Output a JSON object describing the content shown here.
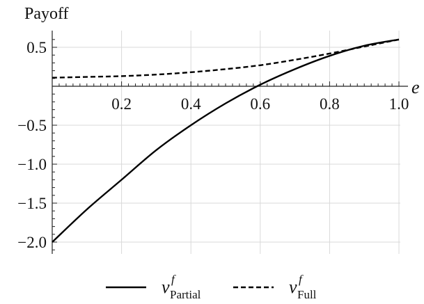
{
  "chart_data": {
    "type": "line",
    "ylabel": "Payoff",
    "xlabel": "e",
    "xlim": [
      0,
      1.0
    ],
    "ylim": [
      -2.1,
      0.7
    ],
    "grid": true,
    "legend_position": "bottom",
    "x_ticks": [
      0.2,
      0.4,
      0.6,
      0.8,
      1.0
    ],
    "x_tick_labels": [
      "0.2",
      "0.4",
      "0.6",
      "0.8",
      "1.0"
    ],
    "y_ticks": [
      0.5,
      -0.5,
      -1.0,
      -1.5,
      -2.0
    ],
    "y_tick_labels": [
      "0.5",
      "−0.5",
      "−1.0",
      "−1.5",
      "−2.0"
    ],
    "series": [
      {
        "name_main": "v",
        "name_sup": "f",
        "name_sub": "Partial",
        "style": "solid",
        "x": [
          0,
          0.1,
          0.2,
          0.3,
          0.4,
          0.5,
          0.6,
          0.7,
          0.8,
          0.9,
          1.0
        ],
        "y": [
          -2.0,
          -1.58,
          -1.2,
          -0.82,
          -0.5,
          -0.22,
          0.02,
          0.22,
          0.39,
          0.52,
          0.6
        ]
      },
      {
        "name_main": "v",
        "name_sup": "f",
        "name_sub": "Full",
        "style": "dashed",
        "x": [
          0,
          0.1,
          0.2,
          0.3,
          0.4,
          0.5,
          0.6,
          0.7,
          0.8,
          0.9,
          1.0
        ],
        "y": [
          0.11,
          0.12,
          0.13,
          0.15,
          0.18,
          0.22,
          0.27,
          0.34,
          0.42,
          0.51,
          0.6
        ]
      }
    ]
  }
}
